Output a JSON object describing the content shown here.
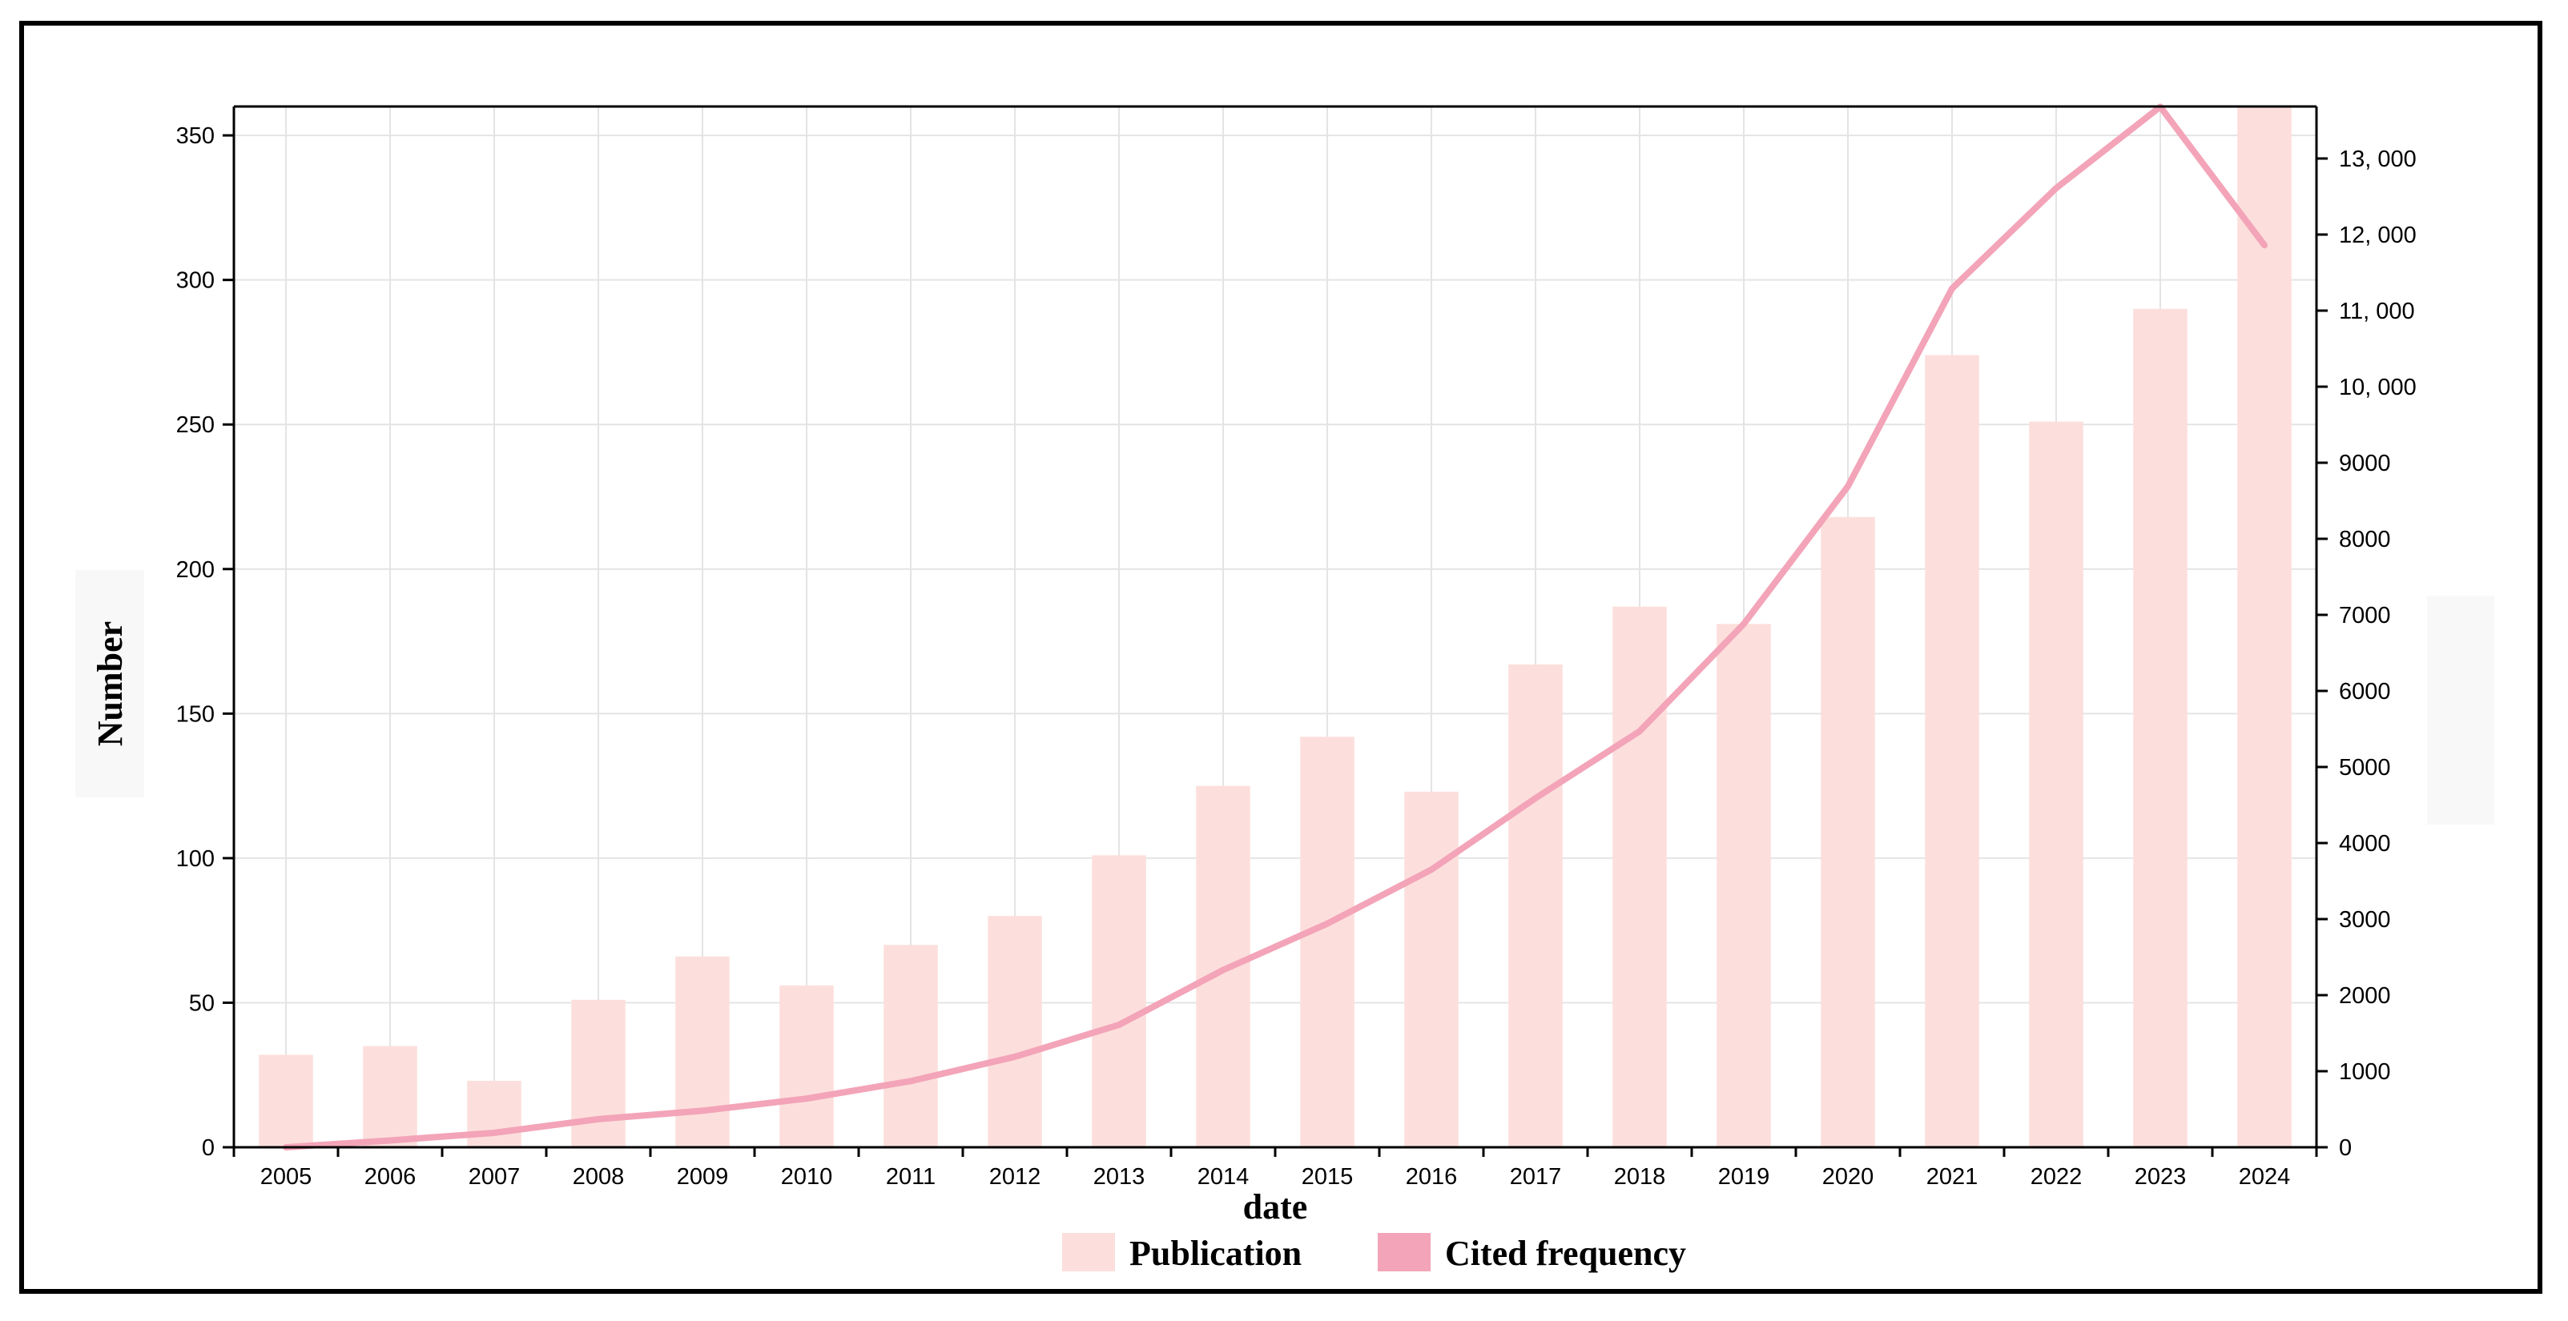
{
  "chart_data": {
    "type": "bar",
    "title": "",
    "xlabel": "date",
    "ylabel": "Number",
    "y2label": "",
    "categories": [
      "2005",
      "2006",
      "2007",
      "2008",
      "2009",
      "2010",
      "2011",
      "2012",
      "2013",
      "2014",
      "2015",
      "2016",
      "2017",
      "2018",
      "2019",
      "2020",
      "2021",
      "2022",
      "2023",
      "2024"
    ],
    "ylim": [
      0,
      360
    ],
    "y_ticks": [
      0,
      50,
      100,
      150,
      200,
      250,
      300,
      350
    ],
    "y2lim": [
      0,
      13684
    ],
    "y2_ticks": [
      0,
      1000,
      2000,
      3000,
      4000,
      5000,
      6000,
      7000,
      8000,
      9000,
      10000,
      11000,
      12000,
      13000
    ],
    "y2_tick_labels": [
      "0",
      "1000",
      "2000",
      "3000",
      "4000",
      "5000",
      "6000",
      "7000",
      "8000",
      "9000",
      "10, 000",
      "11, 000",
      "12, 000",
      "13, 000"
    ],
    "grid": true,
    "legend_position": "bottom-center",
    "series": [
      {
        "name": "Publication",
        "type": "bar",
        "axis": "left",
        "color": "#fcdfdc",
        "values": [
          32,
          35,
          23,
          51,
          66,
          56,
          70,
          80,
          101,
          125,
          142,
          123,
          167,
          187,
          181,
          218,
          274,
          251,
          290,
          360
        ]
      },
      {
        "name": "Cited frequency",
        "type": "line",
        "axis": "right",
        "color": "#f3a4b8",
        "values": [
          0,
          90,
          190,
          370,
          480,
          640,
          870,
          1190,
          1610,
          2330,
          2940,
          3650,
          4590,
          5470,
          6880,
          8690,
          11290,
          12610,
          13680,
          11860
        ]
      }
    ]
  }
}
